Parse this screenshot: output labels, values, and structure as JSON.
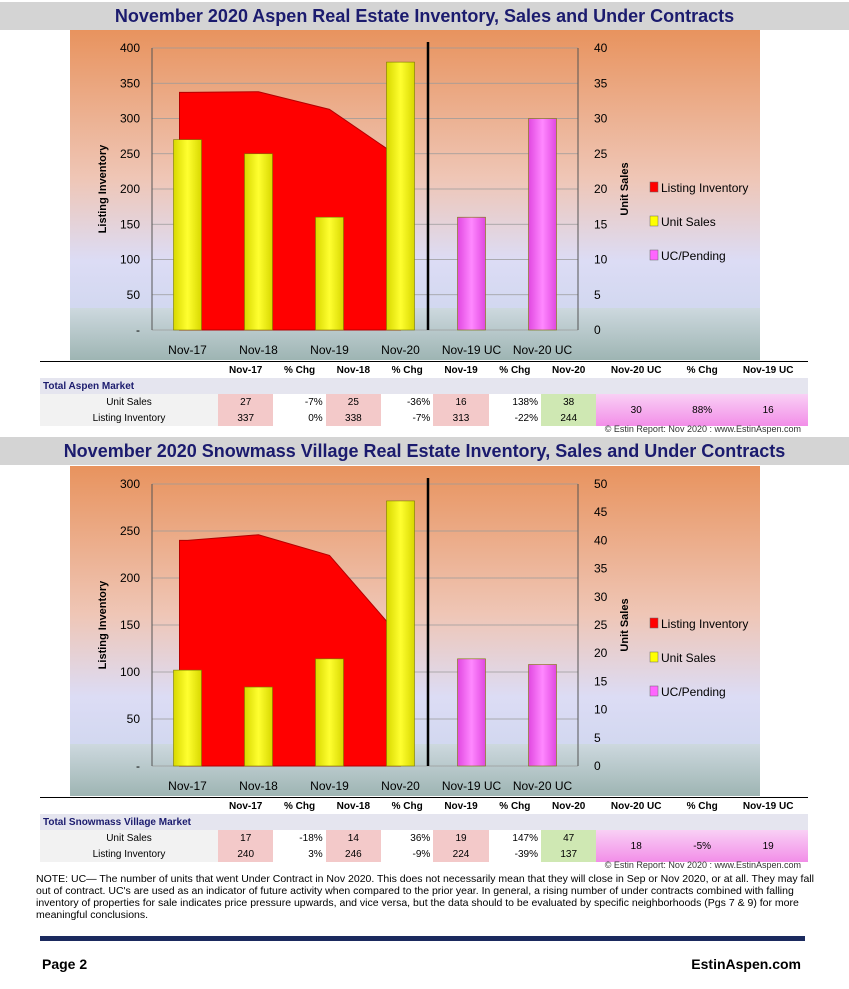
{
  "panels": [
    {
      "title": "November 2020 Aspen Real Estate Inventory, Sales and Under Contracts",
      "market_label": "Total Aspen Market",
      "table_headers": [
        "Nov-17",
        "% Chg",
        "Nov-18",
        "% Chg",
        "Nov-19",
        "% Chg",
        "Nov-20",
        "Nov-20 UC",
        "% Chg",
        "Nov-19 UC"
      ],
      "rows": [
        {
          "label": "Unit Sales",
          "values": [
            "27",
            "-7%",
            "25",
            "-36%",
            "16",
            "138%",
            "38",
            "30",
            "88%",
            "16"
          ]
        },
        {
          "label": "Listing Inventory",
          "values": [
            "337",
            "0%",
            "338",
            "-7%",
            "313",
            "-22%",
            "244",
            "",
            "",
            ""
          ]
        }
      ],
      "copyright": "© Estin Report: Nov 2020 : www.EstinAspen.com"
    },
    {
      "title": "November 2020 Snowmass Village Real Estate Inventory, Sales and Under Contracts",
      "market_label": "Total Snowmass Village Market",
      "table_headers": [
        "Nov-17",
        "% Chg",
        "Nov-18",
        "% Chg",
        "Nov-19",
        "% Chg",
        "Nov-20",
        "Nov-20 UC",
        "% Chg",
        "Nov-19 UC"
      ],
      "rows": [
        {
          "label": "Unit Sales",
          "values": [
            "17",
            "-18%",
            "14",
            "36%",
            "19",
            "147%",
            "47",
            "18",
            "-5%",
            "19"
          ]
        },
        {
          "label": "Listing Inventory",
          "values": [
            "240",
            "3%",
            "246",
            "-9%",
            "224",
            "-39%",
            "137",
            "",
            "",
            ""
          ]
        }
      ],
      "copyright": "© Estin Report: Nov 2020 : www.EstinAspen.com"
    }
  ],
  "chart_data": [
    {
      "type": "bar",
      "categories": [
        "Nov-17",
        "Nov-18",
        "Nov-19",
        "Nov-20",
        "Nov-19 UC",
        "Nov-20 UC"
      ],
      "ylabel": "Listing Inventory",
      "y2label": "Unit Sales",
      "yticks": [
        "-",
        "50",
        "100",
        "150",
        "200",
        "250",
        "300",
        "350",
        "400"
      ],
      "y2ticks": [
        "0",
        "5",
        "10",
        "15",
        "20",
        "25",
        "30",
        "35",
        "40"
      ],
      "ylim": [
        0,
        400
      ],
      "y2lim": [
        0,
        40
      ],
      "series": [
        {
          "name": "Listing Inventory",
          "kind": "area",
          "axis": "left",
          "color": "#ff0000",
          "values": [
            337,
            338,
            313,
            244,
            null,
            null
          ]
        },
        {
          "name": "Unit Sales",
          "kind": "bar",
          "axis": "right",
          "color": "#ffff00",
          "values": [
            27,
            25,
            16,
            38,
            null,
            null
          ]
        },
        {
          "name": "UC/Pending",
          "kind": "bar",
          "axis": "right",
          "color": "#ff66ff",
          "values": [
            null,
            null,
            null,
            null,
            16,
            30
          ]
        }
      ],
      "legend": "right"
    },
    {
      "type": "bar",
      "categories": [
        "Nov-17",
        "Nov-18",
        "Nov-19",
        "Nov-20",
        "Nov-19 UC",
        "Nov-20 UC"
      ],
      "ylabel": "Listing Inventory",
      "y2label": "Unit Sales",
      "yticks": [
        "-",
        "50",
        "100",
        "150",
        "200",
        "250",
        "300"
      ],
      "y2ticks": [
        "0",
        "5",
        "10",
        "15",
        "20",
        "25",
        "30",
        "35",
        "40",
        "45",
        "50"
      ],
      "ylim": [
        0,
        300
      ],
      "y2lim": [
        0,
        50
      ],
      "series": [
        {
          "name": "Listing Inventory",
          "kind": "area",
          "axis": "left",
          "color": "#ff0000",
          "values": [
            240,
            246,
            224,
            137,
            null,
            null
          ]
        },
        {
          "name": "Unit Sales",
          "kind": "bar",
          "axis": "right",
          "color": "#ffff00",
          "values": [
            17,
            14,
            19,
            47,
            null,
            null
          ]
        },
        {
          "name": "UC/Pending",
          "kind": "bar",
          "axis": "right",
          "color": "#ff66ff",
          "values": [
            null,
            null,
            null,
            null,
            19,
            18
          ]
        }
      ],
      "legend": "right"
    }
  ],
  "note": "NOTE: UC— The number of units that went Under Contract in Nov 2020. This does not necessarily mean that they will close in Sep or Nov 2020,  or at all. They may fall out of contract.  UC's are used as an indicator of future activity when compared to the prior year. In general, a rising number of under contracts combined with falling inventory of properties for sale indicates price pressure upwards, and vice versa, but the data should to be evaluated by specific neighborhoods (Pgs 7 & 9) for more meaningful conclusions.",
  "footer": {
    "page": "Page 2",
    "site": "EstinAspen.com"
  }
}
